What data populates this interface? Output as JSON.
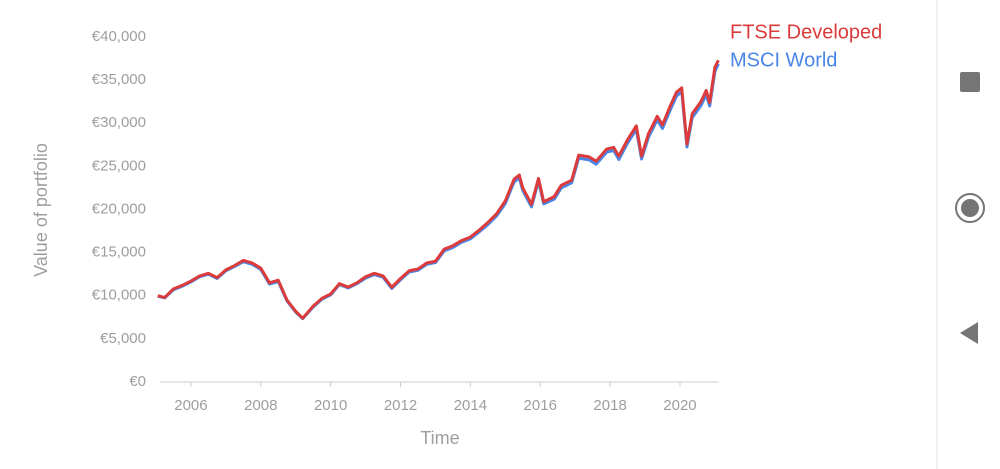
{
  "chart_data": {
    "type": "line",
    "x_label": "Time",
    "y_label": "Value of portfolio",
    "x": [
      2005.05,
      2005.25,
      2005.5,
      2005.75,
      2006.0,
      2006.25,
      2006.5,
      2006.75,
      2007.0,
      2007.25,
      2007.5,
      2007.75,
      2008.0,
      2008.25,
      2008.5,
      2008.75,
      2009.0,
      2009.2,
      2009.5,
      2009.75,
      2010.0,
      2010.25,
      2010.5,
      2010.75,
      2011.0,
      2011.25,
      2011.5,
      2011.75,
      2012.0,
      2012.25,
      2012.5,
      2012.75,
      2013.0,
      2013.25,
      2013.5,
      2013.75,
      2014.0,
      2014.25,
      2014.5,
      2014.75,
      2015.0,
      2015.25,
      2015.4,
      2015.5,
      2015.75,
      2015.95,
      2016.1,
      2016.4,
      2016.6,
      2016.9,
      2017.1,
      2017.4,
      2017.6,
      2017.9,
      2018.1,
      2018.25,
      2018.5,
      2018.75,
      2018.9,
      2019.1,
      2019.35,
      2019.5,
      2019.7,
      2019.9,
      2020.05,
      2020.2,
      2020.35,
      2020.6,
      2020.75,
      2020.85,
      2021.0,
      2021.1
    ],
    "series": [
      {
        "name": "MSCI World",
        "color": "#4a86e8",
        "values": [
          9950,
          9750,
          10700,
          11100,
          11600,
          12200,
          12500,
          12000,
          12900,
          13400,
          13950,
          13650,
          13050,
          11350,
          11650,
          9400,
          8100,
          7350,
          8700,
          9600,
          10100,
          11300,
          10900,
          11400,
          12050,
          12450,
          12150,
          10850,
          11850,
          12750,
          12950,
          13650,
          13850,
          15200,
          15600,
          16200,
          16600,
          17400,
          18250,
          19250,
          20700,
          23200,
          23650,
          22200,
          20300,
          23300,
          20650,
          21200,
          22500,
          23100,
          25950,
          25750,
          25250,
          26650,
          26850,
          25800,
          27700,
          29300,
          25850,
          28400,
          30400,
          29400,
          31350,
          33150,
          33650,
          27250,
          30650,
          32050,
          33300,
          32000,
          36000,
          36900
        ]
      },
      {
        "name": "FTSE Developed",
        "color": "#dc3b3b",
        "values": [
          10000,
          9800,
          10800,
          11200,
          11700,
          12300,
          12600,
          12100,
          13000,
          13500,
          14100,
          13800,
          13200,
          11500,
          11800,
          9500,
          8200,
          7400,
          8800,
          9700,
          10200,
          11400,
          11000,
          11500,
          12200,
          12600,
          12300,
          11000,
          12000,
          12900,
          13100,
          13800,
          14000,
          15400,
          15800,
          16400,
          16800,
          17600,
          18500,
          19500,
          21000,
          23500,
          24000,
          22500,
          20600,
          23600,
          20900,
          21500,
          22800,
          23400,
          26300,
          26100,
          25600,
          27000,
          27200,
          26200,
          28100,
          29700,
          26200,
          28800,
          30800,
          29800,
          31800,
          33600,
          34100,
          27600,
          31100,
          32500,
          33800,
          32400,
          36500,
          37300
        ]
      }
    ],
    "xlim": [
      2005,
      2021.1
    ],
    "xticks": [
      2006,
      2008,
      2010,
      2012,
      2014,
      2016,
      2018,
      2020
    ],
    "ylim": [
      0,
      40000
    ],
    "yticks": [
      {
        "value": 0,
        "label": "€0"
      },
      {
        "value": 5000,
        "label": "€5,000"
      },
      {
        "value": 10000,
        "label": "€10,000"
      },
      {
        "value": 15000,
        "label": "€15,000"
      },
      {
        "value": 20000,
        "label": "€20,000"
      },
      {
        "value": 25000,
        "label": "€25,000"
      },
      {
        "value": 30000,
        "label": "€30,000"
      },
      {
        "value": 35000,
        "label": "€35,000"
      },
      {
        "value": 40000,
        "label": "€40,000"
      }
    ],
    "grid": false,
    "legend": "top-right"
  }
}
